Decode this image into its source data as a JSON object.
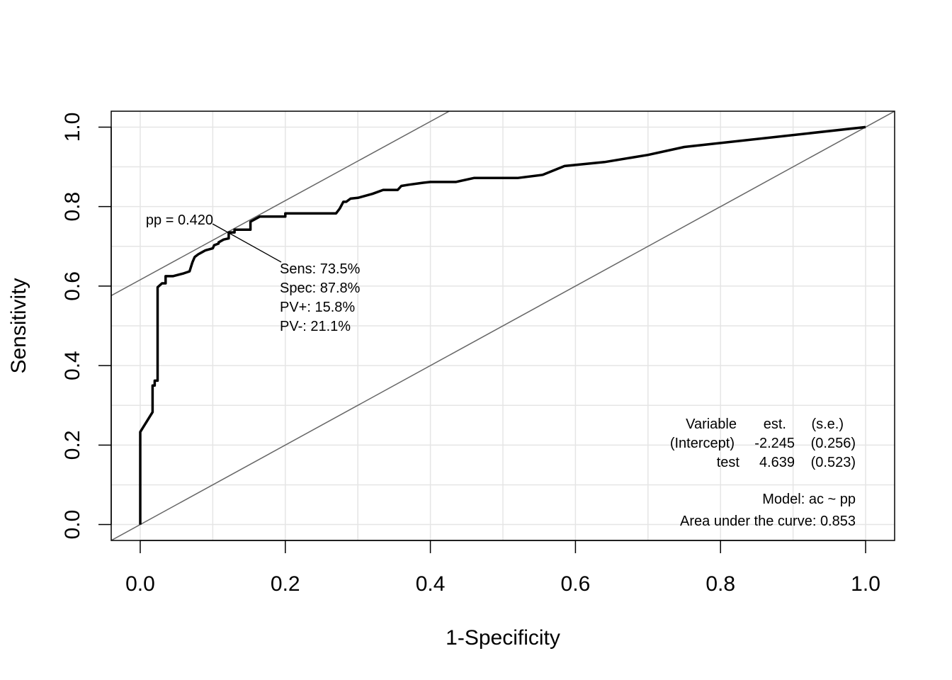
{
  "chart_data": {
    "type": "line",
    "title": "",
    "xlabel": "1-Specificity",
    "ylabel": "Sensitivity",
    "xlim": [
      -0.04,
      1.04
    ],
    "ylim": [
      -0.04,
      1.04
    ],
    "grid": true,
    "x_ticks": [
      "0.0",
      "0.2",
      "0.4",
      "0.6",
      "0.8",
      "1.0"
    ],
    "y_ticks": [
      "0.0",
      "0.2",
      "0.4",
      "0.6",
      "0.8",
      "1.0"
    ],
    "series": [
      {
        "x": [
          0,
          0,
          0.017,
          0.017,
          0.02,
          0.02,
          0.024,
          0.024,
          0.03,
          0.035,
          0.035,
          0.045,
          0.06,
          0.068,
          0.072,
          0.075,
          0.08,
          0.085,
          0.09,
          0.1,
          0.102,
          0.108,
          0.108,
          0.115,
          0.122,
          0.122,
          0.13,
          0.13,
          0.138,
          0.152,
          0.152,
          0.165,
          0.2,
          0.2,
          0.27,
          0.275,
          0.28,
          0.284,
          0.29,
          0.3,
          0.32,
          0.335,
          0.355,
          0.36,
          0.37,
          0.39,
          0.4,
          0.435,
          0.46,
          0.52,
          0.555,
          0.585,
          0.64,
          0.7,
          0.75,
          1.0
        ],
        "y": [
          0,
          0.233,
          0.283,
          0.35,
          0.35,
          0.362,
          0.362,
          0.597,
          0.607,
          0.607,
          0.625,
          0.625,
          0.632,
          0.637,
          0.66,
          0.673,
          0.68,
          0.685,
          0.69,
          0.695,
          0.703,
          0.707,
          0.71,
          0.717,
          0.72,
          0.735,
          0.735,
          0.742,
          0.742,
          0.742,
          0.762,
          0.775,
          0.775,
          0.783,
          0.783,
          0.795,
          0.812,
          0.812,
          0.82,
          0.822,
          0.832,
          0.842,
          0.842,
          0.852,
          0.855,
          0.86,
          0.862,
          0.862,
          0.872,
          0.872,
          0.88,
          0.902,
          0.912,
          0.93,
          0.95,
          1.0
        ]
      }
    ],
    "reference_lines": [
      {
        "type": "diagonal",
        "from": [
          0,
          0
        ],
        "to": [
          1,
          1
        ]
      },
      {
        "type": "tangent",
        "from": [
          -0.04,
          0.576
        ],
        "to": [
          0.426,
          1.04
        ]
      }
    ],
    "cut_point": {
      "x": 0.122,
      "y": 0.735,
      "label": "pp = 0.420",
      "stats": [
        "Sens: 73.5%",
        "Spec: 87.8%",
        "PV+: 15.8%",
        "PV-: 21.1%"
      ]
    },
    "coef_table": {
      "headers": [
        "Variable",
        "est.",
        "(s.e.)"
      ],
      "rows": [
        [
          "(Intercept)",
          "-2.245",
          "(0.256)"
        ],
        [
          "test",
          "4.639",
          "(0.523)"
        ]
      ]
    },
    "model_text": "Model:  ac ~ pp",
    "auc_text": "Area under the curve: 0.853",
    "colors": {
      "curve": "#000000",
      "grid": "#e5e5e5",
      "reference": "#666666"
    }
  }
}
